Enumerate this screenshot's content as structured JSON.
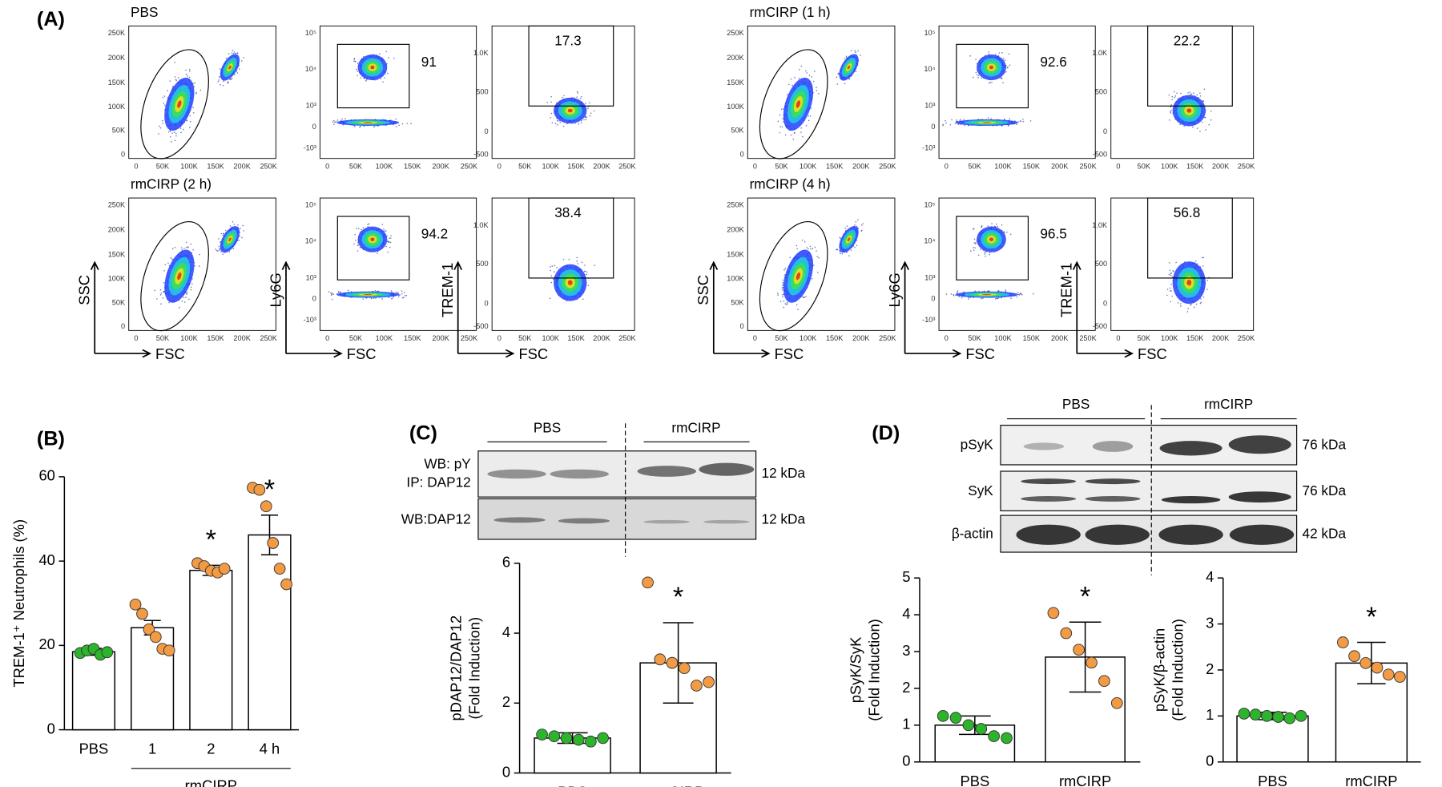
{
  "panel_a": {
    "label": "(A)",
    "samples": [
      {
        "name": "PBS",
        "gates": [
          91,
          17.3
        ]
      },
      {
        "name": "rmCIRP (1 h)",
        "gates": [
          92.6,
          22.2
        ]
      },
      {
        "name": "rmCIRP (2 h)",
        "gates": [
          94.2,
          38.4
        ]
      },
      {
        "name": "rmCIRP (4 h)",
        "gates": [
          96.5,
          56.8
        ]
      }
    ],
    "scatter_xticks": [
      "0",
      "50K",
      "100K",
      "150K",
      "200K",
      "250K"
    ],
    "scatter_yticks": [
      "0",
      "50K",
      "100K",
      "150K",
      "200K",
      "250K"
    ],
    "ly6g_yticks": [
      "10⁵",
      "10⁴",
      "10³",
      "0",
      "-10³"
    ],
    "trem_yticks": [
      "1.0K",
      "500",
      "0",
      "-500"
    ],
    "axis_labels": {
      "ssc": "SSC",
      "fsc": "FSC",
      "ly6g": "Ly6G",
      "trem": "TREM-1"
    }
  },
  "blots": {
    "c": {
      "label": "(C)",
      "groups": [
        "PBS",
        "rmCIRP"
      ],
      "rows": [
        {
          "labels": [
            "WB: pY",
            "IP: DAP12"
          ],
          "size": "12 kDa"
        },
        {
          "labels": [
            "WB:DAP12"
          ],
          "size": "12 kDa"
        }
      ]
    },
    "d": {
      "label": "(D)",
      "groups": [
        "PBS",
        "rmCIRP"
      ],
      "rows": [
        {
          "label": "pSyK",
          "size": "76 kDa"
        },
        {
          "label": "SyK",
          "size": "76 kDa"
        },
        {
          "label": "β-actin",
          "size": "42 kDa"
        }
      ]
    }
  },
  "chart_data": [
    {
      "type": "bar",
      "title": "(B)",
      "y_label": [
        "TREM-1⁺ Neutrophils (%)"
      ],
      "categories": [
        "PBS",
        "1",
        "2",
        "4 h"
      ],
      "group_label": "rmCIRP",
      "values": [
        18.5,
        24.2,
        37.8,
        46.2
      ],
      "errors": [
        0.8,
        1.7,
        1.2,
        4.7
      ],
      "points": [
        [
          18.2,
          18.8,
          19.2,
          17.8,
          18.4
        ],
        [
          29.7,
          27.5,
          23.8,
          22,
          19.2,
          18.8
        ],
        [
          39.5,
          38.8,
          37.7,
          37.3,
          38.2
        ],
        [
          57.4,
          56.9,
          53,
          44.3,
          38.2,
          34.5
        ]
      ],
      "colors": [
        "#2cb42c",
        "#f39a45",
        "#f39a45",
        "#f39a45"
      ],
      "significance": [
        null,
        null,
        "*",
        "*"
      ],
      "ylim": [
        0,
        60
      ],
      "yticks": [
        0,
        20,
        40,
        60
      ]
    },
    {
      "type": "bar",
      "y_label": [
        "pDAP12/DAP12",
        "(Fold Induction)"
      ],
      "categories": [
        "PBS",
        "rmCIRP"
      ],
      "values": [
        1.0,
        3.15
      ],
      "errors": [
        0.15,
        1.15
      ],
      "points": [
        [
          1.1,
          1.05,
          1.0,
          0.95,
          0.9,
          1.0
        ],
        [
          5.45,
          3.25,
          3.15,
          3.0,
          2.5,
          2.6
        ]
      ],
      "colors": [
        "#2cb42c",
        "#f39a45"
      ],
      "significance": [
        null,
        "*"
      ],
      "ylim": [
        0,
        6
      ],
      "yticks": [
        0,
        2,
        4,
        6
      ]
    },
    {
      "type": "bar",
      "y_label": [
        "pSyK/SyK",
        "(Fold Induction)"
      ],
      "categories": [
        "PBS",
        "rmCIRP"
      ],
      "values": [
        1.0,
        2.85
      ],
      "errors": [
        0.25,
        0.95
      ],
      "points": [
        [
          1.25,
          1.2,
          1.0,
          0.9,
          0.7,
          0.65
        ],
        [
          4.05,
          3.5,
          3.05,
          2.7,
          2.2,
          1.6
        ]
      ],
      "colors": [
        "#2cb42c",
        "#f39a45"
      ],
      "significance": [
        null,
        "*"
      ],
      "ylim": [
        0,
        5
      ],
      "yticks": [
        0,
        1,
        2,
        3,
        4,
        5
      ]
    },
    {
      "type": "bar",
      "y_label": [
        "pSyK/β-actin",
        "(Fold Induction)"
      ],
      "categories": [
        "PBS",
        "rmCIRP"
      ],
      "values": [
        1.0,
        2.15
      ],
      "errors": [
        0.08,
        0.45
      ],
      "points": [
        [
          1.05,
          1.03,
          1.0,
          0.98,
          0.95,
          1.0
        ],
        [
          2.6,
          2.3,
          2.15,
          2.05,
          1.9,
          1.85
        ]
      ],
      "colors": [
        "#2cb42c",
        "#f39a45"
      ],
      "significance": [
        null,
        "*"
      ],
      "ylim": [
        0,
        4
      ],
      "yticks": [
        0,
        1,
        2,
        3,
        4
      ]
    }
  ]
}
